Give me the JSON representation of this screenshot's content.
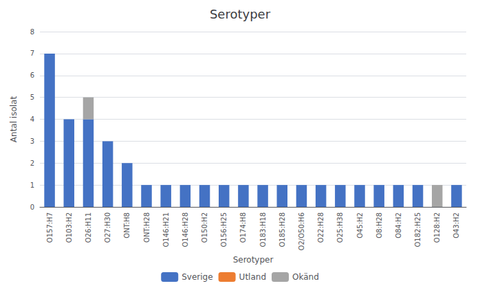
{
  "chart_data": {
    "type": "bar",
    "title": "Serotyper",
    "xlabel": "Serotyper",
    "ylabel": "Antal isolat",
    "categories": [
      "O157:H7",
      "O103:H2",
      "O26:H11",
      "O27:H30",
      "ONT:H8",
      "ONT:H28",
      "O146:H21",
      "O146:H28",
      "O150:H2",
      "O156:H25",
      "O174:H8",
      "O183:H18",
      "O185:H28",
      "O2/O50:H6",
      "O22:H28",
      "O25:H38",
      "O45:H2",
      "O8:H28",
      "O84:H2",
      "O182:H25",
      "O128:H2",
      "O43:H2"
    ],
    "series": [
      {
        "name": "Sverige",
        "color": "#4472C4",
        "values": [
          7,
          4,
          4,
          3,
          2,
          1,
          1,
          1,
          1,
          1,
          1,
          1,
          1,
          1,
          1,
          1,
          1,
          1,
          1,
          1,
          0,
          1
        ]
      },
      {
        "name": "Utland",
        "color": "#ED7D31",
        "values": [
          0,
          0,
          0,
          0,
          0,
          0,
          0,
          0,
          0,
          0,
          0,
          0,
          0,
          0,
          0,
          0,
          0,
          0,
          0,
          0,
          0,
          0
        ]
      },
      {
        "name": "Okänd",
        "color": "#A5A5A5",
        "values": [
          0,
          0,
          1,
          0,
          0,
          0,
          0,
          0,
          0,
          0,
          0,
          0,
          0,
          0,
          0,
          0,
          0,
          0,
          0,
          0,
          1,
          0
        ]
      }
    ],
    "stacked": true,
    "ylim": [
      0,
      8
    ],
    "yticks": [
      0,
      1,
      2,
      3,
      4,
      5,
      6,
      7,
      8
    ],
    "grid": true,
    "legend": "bottom"
  }
}
